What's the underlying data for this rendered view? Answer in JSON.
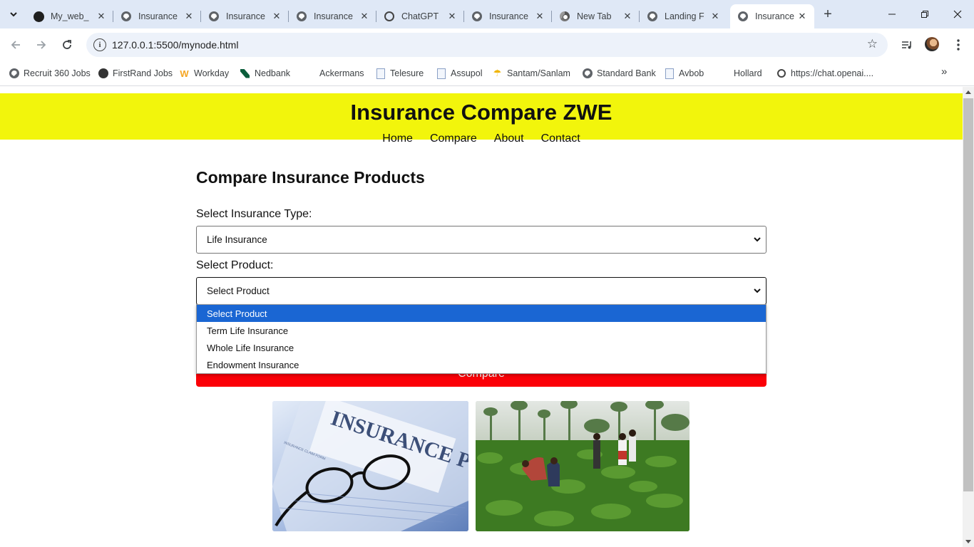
{
  "browser": {
    "tabs": [
      {
        "title": "My_web_",
        "icon": "github-icon"
      },
      {
        "title": "Insurance",
        "icon": "globe-icon"
      },
      {
        "title": "Insurance",
        "icon": "globe-icon"
      },
      {
        "title": "Insurance",
        "icon": "globe-icon"
      },
      {
        "title": "ChatGPT",
        "icon": "openai-icon"
      },
      {
        "title": "Insurance",
        "icon": "globe-icon"
      },
      {
        "title": "New Tab",
        "icon": "chrome-icon"
      },
      {
        "title": "Landing F",
        "icon": "globe-icon"
      },
      {
        "title": "Insurance",
        "icon": "globe-icon",
        "active": true
      }
    ],
    "url": "127.0.0.1:5500/mynode.html",
    "bookmarks": [
      {
        "label": "Recruit 360 Jobs"
      },
      {
        "label": "FirstRand Jobs"
      },
      {
        "label": "Workday"
      },
      {
        "label": "Nedbank"
      },
      {
        "label": "Ackermans"
      },
      {
        "label": "Telesure"
      },
      {
        "label": "Assupol"
      },
      {
        "label": "Santam/Sanlam"
      },
      {
        "label": "Standard Bank"
      },
      {
        "label": "Avbob"
      },
      {
        "label": "Hollard"
      },
      {
        "label": "https://chat.openai...."
      }
    ]
  },
  "site": {
    "title": "Insurance Compare ZWE",
    "nav": {
      "home": "Home",
      "compare": "Compare",
      "about": "About",
      "contact": "Contact"
    }
  },
  "form": {
    "heading": "Compare Insurance Products",
    "type_label": "Select Insurance Type:",
    "type_value": "Life Insurance",
    "product_label": "Select Product:",
    "product_value": "Select Product",
    "product_options": [
      "Select Product",
      "Term Life Insurance",
      "Whole Life Insurance",
      "Endowment Insurance"
    ],
    "compare_button": "Compare"
  },
  "images": {
    "photo1_text": "INSURANCE POLICY",
    "photo1_subtext": "INSURANCE CLAIM FORM"
  },
  "colors": {
    "header_bg": "#f2f50c",
    "button_bg": "#fb0007",
    "option_highlight": "#1a66d3"
  }
}
